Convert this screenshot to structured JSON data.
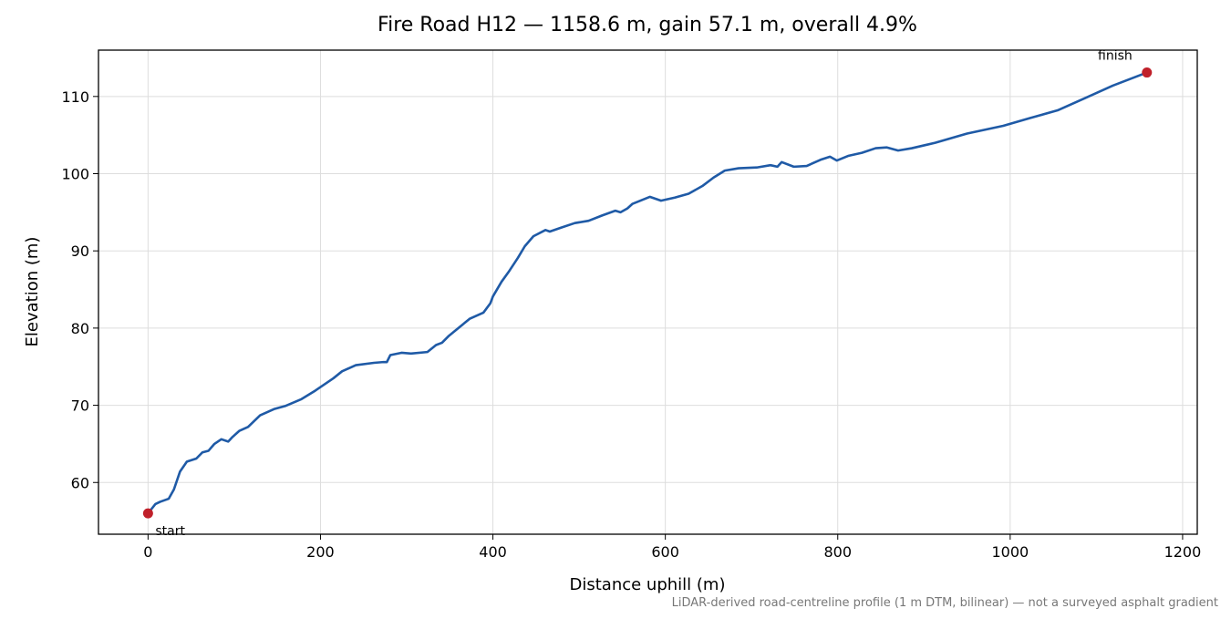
{
  "chart_data": {
    "type": "line",
    "title": "Fire Road H12 — 1158.6 m, gain 57.1 m, overall 4.9%",
    "xlabel": "Distance uphill (m)",
    "ylabel": "Elevation (m)",
    "note": "LiDAR-derived road-centreline profile (1 m DTM, bilinear) — not a surveyed asphalt gradient",
    "x": [
      0,
      8.5,
      14,
      24,
      30,
      37,
      45,
      56,
      63,
      70,
      77,
      85,
      93,
      98,
      106,
      116,
      130,
      146,
      159,
      178,
      194,
      215,
      225,
      241,
      262,
      273,
      277,
      281,
      294,
      305,
      324,
      334,
      341,
      349,
      373,
      389,
      397,
      400,
      410,
      419,
      429,
      437,
      447,
      461,
      466,
      479,
      495,
      511,
      527,
      542,
      548,
      556,
      562,
      582,
      595,
      611,
      627,
      643,
      656,
      669,
      685,
      706,
      722,
      730,
      735,
      749,
      764,
      780,
      791,
      799,
      812,
      828,
      844,
      857,
      870,
      886,
      913,
      950,
      992,
      1023,
      1055,
      1087,
      1119,
      1158.6
    ],
    "values": [
      56.0,
      57.2,
      57.5,
      57.9,
      59.1,
      61.4,
      62.7,
      63.1,
      63.9,
      64.1,
      65.0,
      65.6,
      65.3,
      65.9,
      66.7,
      67.2,
      68.7,
      69.5,
      69.9,
      70.8,
      71.9,
      73.5,
      74.4,
      75.2,
      75.5,
      75.6,
      75.6,
      76.5,
      76.8,
      76.7,
      76.9,
      77.8,
      78.1,
      79.0,
      81.2,
      82.0,
      83.2,
      84.1,
      86.0,
      87.4,
      89.1,
      90.6,
      91.9,
      92.7,
      92.5,
      93.0,
      93.6,
      93.9,
      94.6,
      95.2,
      95.0,
      95.5,
      96.1,
      97.0,
      96.5,
      96.9,
      97.4,
      98.4,
      99.5,
      100.4,
      100.7,
      100.8,
      101.1,
      100.9,
      101.5,
      100.9,
      101.0,
      101.8,
      102.2,
      101.7,
      102.3,
      102.7,
      103.3,
      103.4,
      103.0,
      103.3,
      104.0,
      105.2,
      106.2,
      107.2,
      108.2,
      109.8,
      111.4,
      113.1
    ],
    "color": "#1f5aa6",
    "points": [
      {
        "x": 0,
        "y": 56.0,
        "label": "start"
      },
      {
        "x": 1158.6,
        "y": 113.1,
        "label": "finish"
      }
    ],
    "marker_color": "#c0202a",
    "xlim": [
      -57.5,
      1217
    ],
    "ylim": [
      53.3,
      116.0
    ],
    "xticks": [
      0,
      200,
      400,
      600,
      800,
      1000,
      1200
    ],
    "yticks": [
      60,
      70,
      80,
      90,
      100,
      110
    ],
    "grid": true
  }
}
